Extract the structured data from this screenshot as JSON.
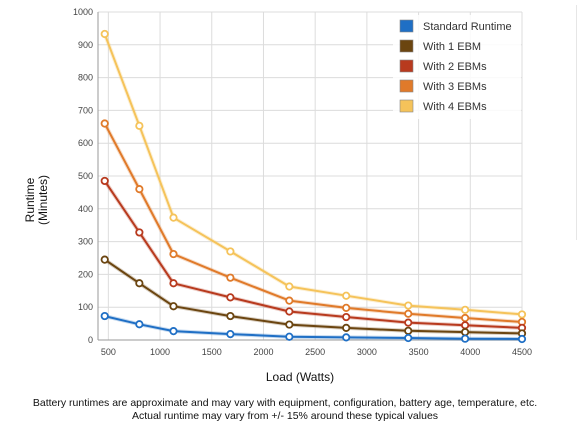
{
  "chart_data": {
    "type": "line",
    "x": [
      465,
      800,
      1130,
      1680,
      2250,
      2800,
      3400,
      3950,
      4500
    ],
    "xlabel": "Load (Watts)",
    "ylabel_lines": [
      "Runtime",
      "(Minutes)"
    ],
    "xlim": [
      400,
      4500
    ],
    "ylim": [
      0,
      1000
    ],
    "xticks": [
      500,
      1000,
      1500,
      2000,
      2500,
      3000,
      3500,
      4000,
      4500
    ],
    "yticks": [
      0,
      100,
      200,
      300,
      400,
      500,
      600,
      700,
      800,
      900,
      1000
    ],
    "grid": true,
    "legend_position": "top-right",
    "series": [
      {
        "name": "Standard Runtime",
        "color": "#1f6fc5",
        "values": [
          73,
          48,
          27,
          18,
          10,
          8,
          6,
          4,
          3
        ]
      },
      {
        "name": "With 1 EBM",
        "color": "#6b4510",
        "values": [
          245,
          173,
          103,
          73,
          47,
          37,
          28,
          24,
          20
        ]
      },
      {
        "name": "With 2 EBMs",
        "color": "#b83a1e",
        "values": [
          485,
          328,
          173,
          130,
          87,
          70,
          53,
          45,
          37
        ]
      },
      {
        "name": "With 3 EBMs",
        "color": "#e07a2a",
        "values": [
          660,
          460,
          262,
          190,
          120,
          98,
          80,
          67,
          55
        ]
      },
      {
        "name": "With 4 EBMs",
        "color": "#f5c35a",
        "values": [
          933,
          653,
          373,
          270,
          163,
          135,
          105,
          92,
          78
        ]
      }
    ]
  },
  "footnote": {
    "line1": "Battery runtimes are approximate and may vary with equipment, configuration, battery age, temperature, etc.",
    "line2": "Actual runtime may vary from +/- 15% around these typical values"
  }
}
